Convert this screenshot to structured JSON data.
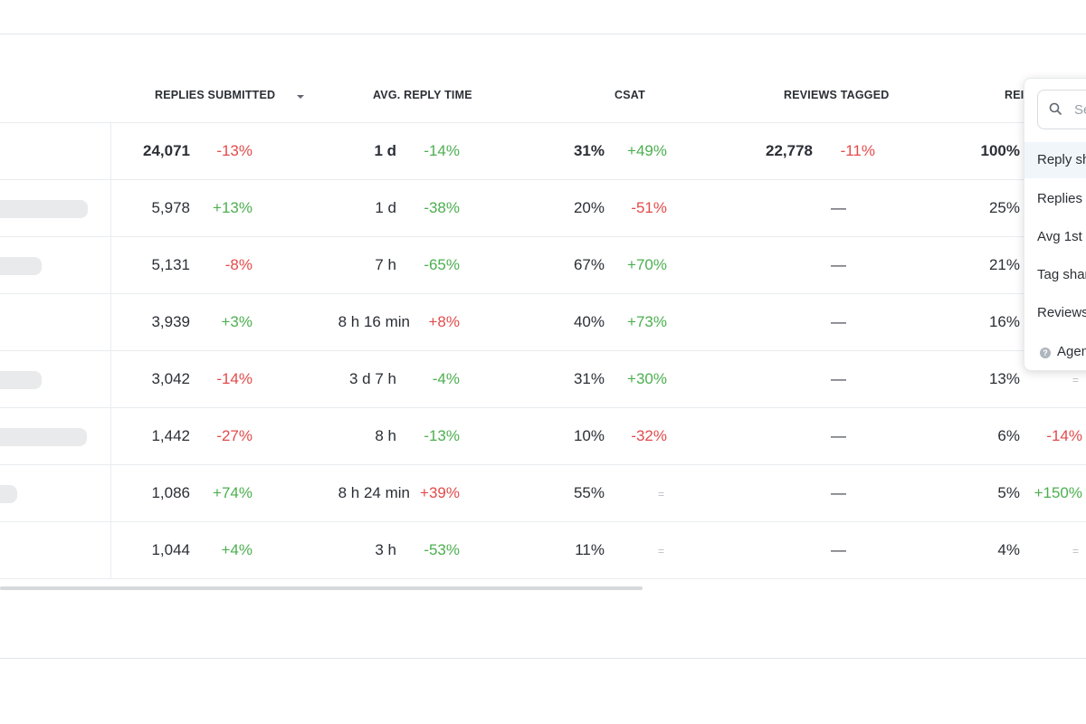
{
  "headers": {
    "replies_submitted": "REPLIES SUBMITTED",
    "avg_reply_time": "AVG. REPLY TIME",
    "csat": "CSAT",
    "reviews_tagged": "REVIEWS TAGGED",
    "reply_share": "REI"
  },
  "rows": [
    {
      "replies": "24,071",
      "replies_delta": "-13%",
      "time": "1 d",
      "time_delta": "-14%",
      "csat": "31%",
      "csat_delta": "+49%",
      "tagged": "22,778",
      "tagged_delta": "-11%",
      "share": "100%",
      "share_delta": ""
    },
    {
      "replies": "5,978",
      "replies_delta": "+13%",
      "time": "1 d",
      "time_delta": "-38%",
      "csat": "20%",
      "csat_delta": "-51%",
      "tagged": "—",
      "share": "25%",
      "share_delta": ""
    },
    {
      "replies": "5,131",
      "replies_delta": "-8%",
      "time": "7 h",
      "time_delta": "-65%",
      "csat": "67%",
      "csat_delta": "+70%",
      "tagged": "—",
      "share": "21%",
      "share_delta": ""
    },
    {
      "replies": "3,939",
      "replies_delta": "+3%",
      "time": "8 h 16 min",
      "time_delta": "+8%",
      "csat": "40%",
      "csat_delta": "+73%",
      "tagged": "—",
      "share": "16%",
      "share_delta": ""
    },
    {
      "replies": "3,042",
      "replies_delta": "-14%",
      "time": "3 d 7 h",
      "time_delta": "-4%",
      "csat": "31%",
      "csat_delta": "+30%",
      "tagged": "—",
      "share": "13%",
      "share_delta": "="
    },
    {
      "replies": "1,442",
      "replies_delta": "-27%",
      "time": "8 h",
      "time_delta": "-13%",
      "csat": "10%",
      "csat_delta": "-32%",
      "tagged": "—",
      "share": "6%",
      "share_delta": "-14%"
    },
    {
      "replies": "1,086",
      "replies_delta": "+74%",
      "time": "8 h 24 min",
      "time_delta": "+39%",
      "csat": "55%",
      "csat_delta": "=",
      "tagged": "—",
      "share": "5%",
      "share_delta": "+150%"
    },
    {
      "replies": "1,044",
      "replies_delta": "+4%",
      "time": "3 h",
      "time_delta": "-53%",
      "csat": "11%",
      "csat_delta": "=",
      "tagged": "—",
      "share": "4%",
      "share_delta": "="
    }
  ],
  "column_menu": {
    "search_placeholder": "Se",
    "items": [
      "Reply sh",
      "Replies",
      "Avg 1st",
      "Tag shar",
      "Reviews",
      "Agen"
    ]
  },
  "colors": {
    "positive": "#4caf50",
    "negative": "#e24b4b",
    "neutral": "#b9bec5"
  }
}
